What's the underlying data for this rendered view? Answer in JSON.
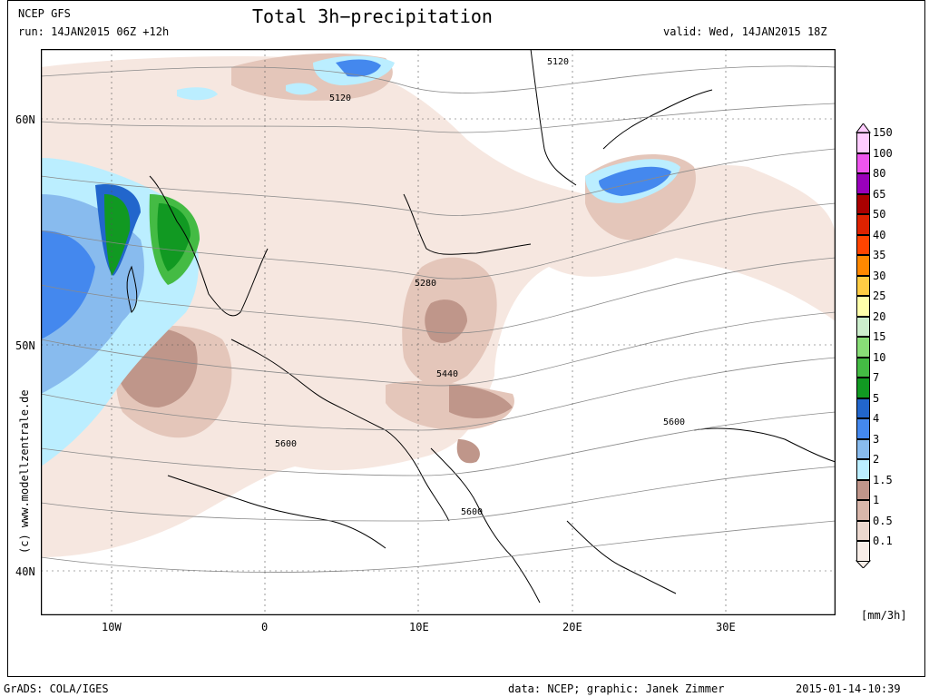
{
  "header": {
    "model": "NCEP GFS",
    "run": "run: 14JAN2015 06Z +12h",
    "title": "Total 3h−precipitation",
    "valid": "valid: Wed, 14JAN2015 18Z"
  },
  "footer": {
    "left": "GrADS: COLA/IGES",
    "credit": "data: NCEP; graphic: Janek Zimmer",
    "timestamp": "2015-01-14-10:39"
  },
  "watermark": "(c)  www.modellzentrale.de",
  "axes": {
    "lat_labels": [
      "60N",
      "50N",
      "40N"
    ],
    "lon_labels": [
      "10W",
      "0",
      "10E",
      "20E",
      "30E"
    ]
  },
  "contour_labels": [
    "5120",
    "5120",
    "5280",
    "5440",
    "5600",
    "5600",
    "5600"
  ],
  "legend": {
    "units": "[mm/3h]",
    "levels": [
      {
        "label": "150",
        "color": "#ffccff"
      },
      {
        "label": "100",
        "color": "#ee55ee"
      },
      {
        "label": "80",
        "color": "#9900bb"
      },
      {
        "label": "65",
        "color": "#aa0000"
      },
      {
        "label": "50",
        "color": "#dd2200"
      },
      {
        "label": "40",
        "color": "#ff4400"
      },
      {
        "label": "35",
        "color": "#ff8800"
      },
      {
        "label": "30",
        "color": "#ffcc44"
      },
      {
        "label": "25",
        "color": "#ffffaa"
      },
      {
        "label": "20",
        "color": "#cceecc"
      },
      {
        "label": "15",
        "color": "#88dd77"
      },
      {
        "label": "10",
        "color": "#44bb44"
      },
      {
        "label": "7",
        "color": "#119922"
      },
      {
        "label": "5",
        "color": "#2266cc"
      },
      {
        "label": "4",
        "color": "#4488ee"
      },
      {
        "label": "3",
        "color": "#88bbee"
      },
      {
        "label": "2",
        "color": "#bbeeff"
      },
      {
        "label": "1.5",
        "color": "#c0958a"
      },
      {
        "label": "1",
        "color": "#d8b6aa"
      },
      {
        "label": "0.5",
        "color": "#ecd8cf"
      },
      {
        "label": "0.1",
        "color": "#f8eee8"
      }
    ]
  }
}
